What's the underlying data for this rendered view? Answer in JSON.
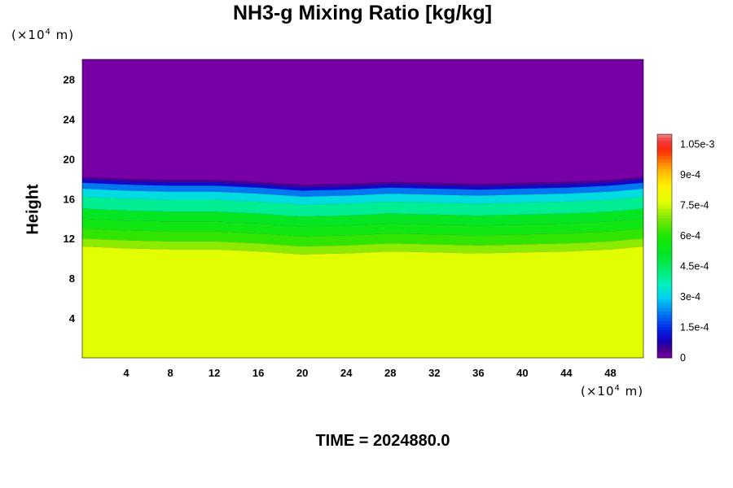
{
  "chart_data": {
    "type": "heatmap",
    "title": "NH3-g Mixing Ratio [kg/kg]",
    "xlabel": "",
    "ylabel": "Height",
    "x_unit": {
      "prefix": "(×10",
      "exp": "4",
      "suffix": " m)"
    },
    "y_unit": {
      "prefix": "(×10",
      "exp": "4",
      "suffix": " m)"
    },
    "xlim": [
      0,
      51
    ],
    "ylim": [
      0,
      30
    ],
    "xticks": [
      4,
      8,
      12,
      16,
      20,
      24,
      28,
      32,
      36,
      40,
      44,
      48
    ],
    "yticks": [
      4,
      8,
      12,
      16,
      20,
      24,
      28
    ],
    "colorbar": {
      "range": [
        0,
        0.0011
      ],
      "ticks": [
        {
          "value": 0,
          "label": "0"
        },
        {
          "value": 0.00015,
          "label": "1.5e-4"
        },
        {
          "value": 0.0003,
          "label": "3e-4"
        },
        {
          "value": 0.00045,
          "label": "4.5e-4"
        },
        {
          "value": 0.0006,
          "label": "6e-4"
        },
        {
          "value": 0.00075,
          "label": "7.5e-4"
        },
        {
          "value": 0.0009,
          "label": "9e-4"
        },
        {
          "value": 0.00105,
          "label": "1.05e-3"
        }
      ]
    },
    "field_description": {
      "top_value": 0.0,
      "top_layer_height_profile": [
        [
          0,
          18.2
        ],
        [
          4,
          18.0
        ],
        [
          8,
          17.9
        ],
        [
          12,
          17.9
        ],
        [
          16,
          17.7
        ],
        [
          20,
          17.4
        ],
        [
          24,
          17.5
        ],
        [
          28,
          17.7
        ],
        [
          32,
          17.6
        ],
        [
          36,
          17.5
        ],
        [
          40,
          17.6
        ],
        [
          44,
          17.7
        ],
        [
          48,
          17.9
        ],
        [
          51,
          18.2
        ]
      ],
      "layer_stops": [
        {
          "depth": 0.0,
          "value": 4e-05
        },
        {
          "depth": 0.25,
          "value": 0.0001
        },
        {
          "depth": 0.6,
          "value": 0.00022
        },
        {
          "depth": 1.2,
          "value": 0.00032
        },
        {
          "depth": 2.0,
          "value": 0.0004
        },
        {
          "depth": 3.2,
          "value": 0.00052
        },
        {
          "depth": 4.2,
          "value": 0.00056
        },
        {
          "depth": 5.2,
          "value": 0.00062
        },
        {
          "depth": 6.2,
          "value": 0.0007
        },
        {
          "depth": 7.0,
          "value": 0.00076
        }
      ],
      "bottom_value": 0.00077
    }
  },
  "time_label": "TIME = 2024880.0"
}
